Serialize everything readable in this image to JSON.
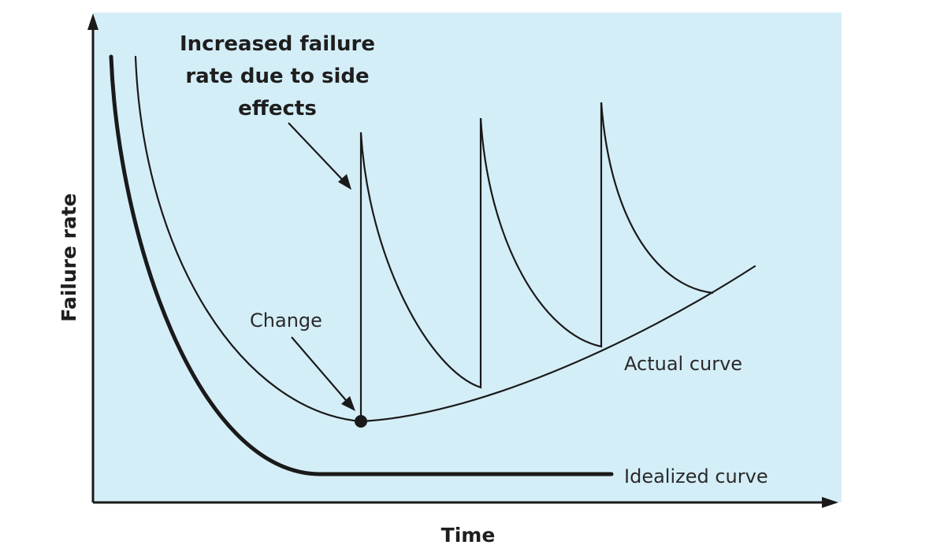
{
  "diagram": {
    "colors": {
      "plot_background": "#d4eef8",
      "ink": "#1a1a1a",
      "page_background": "#ffffff"
    },
    "axes": {
      "x_label": "Time",
      "y_label": "Failure rate"
    },
    "labels": {
      "headline_lines": [
        "Increased failure",
        "rate due to side",
        "effects"
      ],
      "change": "Change",
      "actual_curve": "Actual curve",
      "idealized_curve": "Idealized curve"
    },
    "curves": [
      {
        "name": "Idealized curve",
        "shape": "bathtub, flattening to constant"
      },
      {
        "name": "Actual curve",
        "shape": "rising with periodic spikes after each change"
      }
    ]
  }
}
